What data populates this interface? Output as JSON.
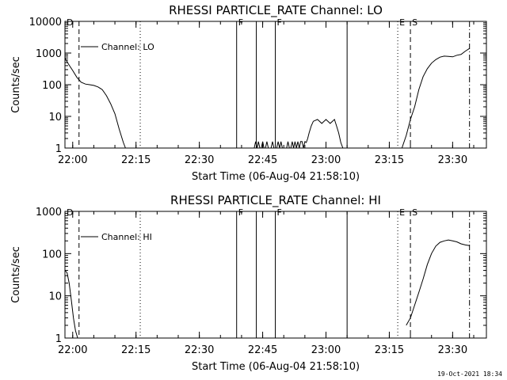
{
  "chart_data": [
    {
      "type": "line",
      "title": "RHESSI PARTICLE_RATE Channel: LO",
      "xlabel": "Start Time (06-Aug-04 21:58:10)",
      "ylabel": "Counts/sec",
      "y_scale": "log",
      "ylim": [
        1,
        10000
      ],
      "x_ticks": [
        "22:00",
        "22:15",
        "22:30",
        "22:45",
        "23:00",
        "23:15",
        "23:30"
      ],
      "y_ticks": [
        "1",
        "10",
        "100",
        "1000",
        "10000"
      ],
      "legend": "Channel: LO",
      "grid": false,
      "series": [
        {
          "name": "Channel: LO",
          "segments": [
            {
              "x": [
                "21:58:10",
                "21:59:00",
                "22:00:00",
                "22:01:00",
                "22:02:00",
                "22:03:00",
                "22:04:00",
                "22:05:00",
                "22:06:00",
                "22:07:00",
                "22:08:00",
                "22:09:00",
                "22:10:00",
                "22:11:00",
                "22:12:00",
                "22:12:30"
              ],
              "y": [
                700,
                450,
                280,
                170,
                120,
                105,
                100,
                95,
                85,
                70,
                45,
                25,
                12,
                4,
                1.5,
                1
              ]
            },
            {
              "x": [
                "22:43:00",
                "22:43:20",
                "22:43:40",
                "22:44:00",
                "22:44:20",
                "22:44:40",
                "22:45:00",
                "22:45:20",
                "22:45:40",
                "22:46:00",
                "22:46:20",
                "22:46:40",
                "22:47:00",
                "22:47:20",
                "22:47:40",
                "22:48:00",
                "22:48:20",
                "22:48:40",
                "22:49:00",
                "22:49:20",
                "22:49:40",
                "22:50:00",
                "22:50:20",
                "22:50:40",
                "22:51:00",
                "22:51:20",
                "22:51:40",
                "22:52:00",
                "22:52:20",
                "22:52:40",
                "22:53:00",
                "22:53:20",
                "22:53:40",
                "22:54:00",
                "22:54:20",
                "22:54:40",
                "22:55:00",
                "22:55:20",
                "22:55:40",
                "22:56:00",
                "22:56:30",
                "22:57:00",
                "22:58:00",
                "22:59:00",
                "23:00:00",
                "23:01:00",
                "23:02:00",
                "23:02:30",
                "23:03:00",
                "23:03:30",
                "23:04:00"
              ],
              "y": [
                1,
                1.6,
                1,
                1.6,
                1,
                1,
                1.6,
                1,
                1,
                1.6,
                1,
                1,
                1,
                1.6,
                1,
                1,
                1,
                1.6,
                1,
                1.6,
                1,
                1,
                1,
                1,
                1.6,
                1,
                1,
                1.6,
                1,
                1.6,
                1,
                1.6,
                1,
                1.6,
                1.6,
                1,
                1.6,
                1.5,
                2,
                3,
                5,
                7,
                8,
                6,
                8,
                6,
                8,
                5,
                3,
                1.5,
                1
              ]
            },
            {
              "x": [
                "23:18:00",
                "23:19:00",
                "23:20:00",
                "23:21:00",
                "23:22:00",
                "23:23:00",
                "23:24:00",
                "23:25:00",
                "23:26:00",
                "23:27:00",
                "23:28:00",
                "23:29:00",
                "23:30:00",
                "23:31:00",
                "23:32:00",
                "23:33:00",
                "23:34:00"
              ],
              "y": [
                1,
                2.5,
                8,
                20,
                70,
                180,
                320,
                480,
                620,
                740,
                800,
                780,
                760,
                850,
                900,
                1150,
                1400
              ]
            }
          ]
        }
      ],
      "markers": [
        {
          "time": "21:58:10",
          "style": "dash-dot",
          "label": "D"
        },
        {
          "time": "22:01:30",
          "style": "dashed",
          "label": ""
        },
        {
          "time": "22:16:00",
          "style": "dotted",
          "label": ""
        },
        {
          "time": "22:38:50",
          "style": "solid",
          "label": "F"
        },
        {
          "time": "22:43:30",
          "style": "solid",
          "label": ""
        },
        {
          "time": "22:48:00",
          "style": "solid",
          "label": "F"
        },
        {
          "time": "23:05:00",
          "style": "solid",
          "label": ""
        },
        {
          "time": "23:17:00",
          "style": "dotted",
          "label": "E"
        },
        {
          "time": "23:20:00",
          "style": "dashed",
          "label": "S"
        },
        {
          "time": "23:34:00",
          "style": "dash-dot",
          "label": ""
        }
      ]
    },
    {
      "type": "line",
      "title": "RHESSI PARTICLE_RATE Channel: HI",
      "xlabel": "Start Time (06-Aug-04 21:58:10)",
      "ylabel": "Counts/sec",
      "y_scale": "log",
      "ylim": [
        1,
        1000
      ],
      "x_ticks": [
        "22:00",
        "22:15",
        "22:30",
        "22:45",
        "23:00",
        "23:15",
        "23:30"
      ],
      "y_ticks": [
        "1",
        "10",
        "100",
        "1000"
      ],
      "legend": "Channel: HI",
      "grid": false,
      "series": [
        {
          "name": "Channel: HI",
          "segments": [
            {
              "x": [
                "21:58:10",
                "21:58:40",
                "21:59:10",
                "21:59:40",
                "22:00:10",
                "22:00:40",
                "22:01:10"
              ],
              "y": [
                40,
                35,
                20,
                8,
                3,
                1.5,
                1
              ]
            },
            {
              "x": [
                "23:19:00",
                "23:20:00",
                "23:21:00",
                "23:22:00",
                "23:23:00",
                "23:24:00",
                "23:25:00",
                "23:26:00",
                "23:27:00",
                "23:28:00",
                "23:29:00",
                "23:30:00",
                "23:31:00",
                "23:32:00",
                "23:33:00",
                "23:34:00"
              ],
              "y": [
                2,
                3,
                6,
                12,
                25,
                55,
                100,
                150,
                185,
                200,
                210,
                200,
                190,
                170,
                160,
                155
              ]
            }
          ]
        }
      ],
      "markers": [
        {
          "time": "21:58:10",
          "style": "dash-dot",
          "label": "D"
        },
        {
          "time": "22:01:30",
          "style": "dashed",
          "label": ""
        },
        {
          "time": "22:16:00",
          "style": "dotted",
          "label": ""
        },
        {
          "time": "22:38:50",
          "style": "solid",
          "label": "F"
        },
        {
          "time": "22:43:30",
          "style": "solid",
          "label": ""
        },
        {
          "time": "22:48:00",
          "style": "solid",
          "label": "F"
        },
        {
          "time": "23:05:00",
          "style": "solid",
          "label": ""
        },
        {
          "time": "23:17:00",
          "style": "dotted",
          "label": "E"
        },
        {
          "time": "23:20:00",
          "style": "dashed",
          "label": "S"
        },
        {
          "time": "23:34:00",
          "style": "dash-dot",
          "label": ""
        }
      ]
    }
  ],
  "footer": "19-Oct-2021 18:34"
}
